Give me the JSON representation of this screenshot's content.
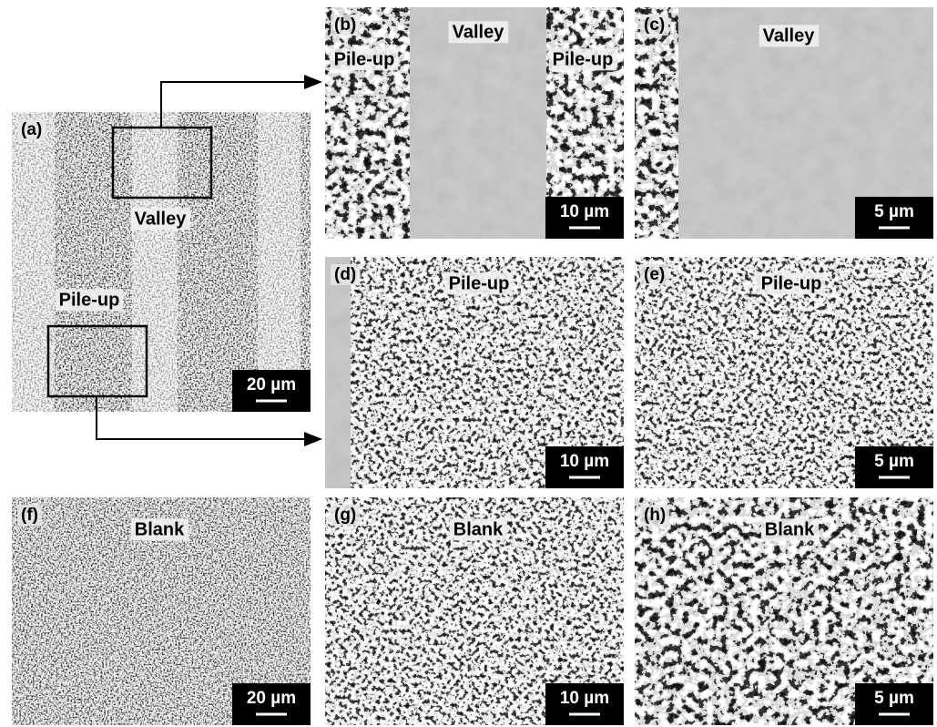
{
  "panels": [
    {
      "label": "(a)",
      "annotations": [
        "Valley",
        "Pile-up"
      ],
      "scale_bar": "20 µm"
    },
    {
      "label": "(b)",
      "annotations": [
        "Valley",
        "Pile-up",
        "Pile-up"
      ],
      "scale_bar": "10 µm"
    },
    {
      "label": "(c)",
      "annotations": [
        "Valley"
      ],
      "scale_bar": "5 µm"
    },
    {
      "label": "(d)",
      "annotations": [
        "Pile-up"
      ],
      "scale_bar": "10 µm"
    },
    {
      "label": "(e)",
      "annotations": [
        "Pile-up"
      ],
      "scale_bar": "5 µm"
    },
    {
      "label": "(f)",
      "annotations": [
        "Blank"
      ],
      "scale_bar": "20 µm"
    },
    {
      "label": "(g)",
      "annotations": [
        "Blank"
      ],
      "scale_bar": "10 µm"
    },
    {
      "label": "(h)",
      "annotations": [
        "Blank"
      ],
      "scale_bar": "5 µm"
    }
  ]
}
